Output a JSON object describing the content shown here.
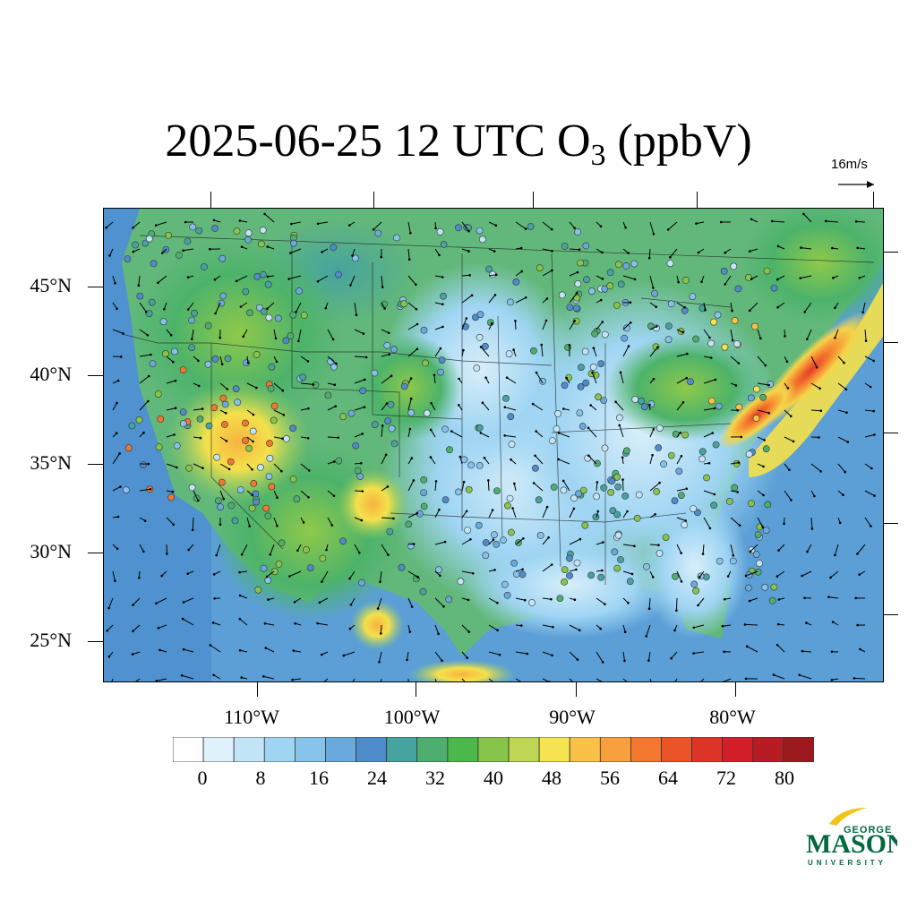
{
  "title": {
    "main": "2025-06-25 12 UTC O",
    "subscript": "3",
    "suffix": " (ppbV)"
  },
  "wind_reference": {
    "label": "16m/s"
  },
  "axes": {
    "lat_labels": [
      "45°N",
      "40°N",
      "35°N",
      "30°N",
      "25°N"
    ],
    "lon_labels": [
      "110°W",
      "100°W",
      "90°W",
      "80°W"
    ]
  },
  "colorbar": {
    "labels": [
      "0",
      "8",
      "16",
      "24",
      "32",
      "40",
      "48",
      "56",
      "64",
      "72",
      "80"
    ],
    "colors": [
      "#ffffff",
      "#dff1fb",
      "#c2e4f7",
      "#9fd5f3",
      "#86c2ea",
      "#69a9dd",
      "#4e8ccb",
      "#47a3a0",
      "#4dae6f",
      "#4cb74a",
      "#86c54a",
      "#bdd654",
      "#f5e44f",
      "#f9c247",
      "#f7a03d",
      "#f3772e",
      "#ea5426",
      "#dd3427",
      "#d21f2a",
      "#b71c23",
      "#9c1a1e"
    ]
  },
  "logo": {
    "line1": "GEORGE",
    "line2": "MASON",
    "line3": "UNIVERSITY",
    "color": "#00693e",
    "accent": "#f2c318"
  },
  "map_colors": {
    "ocean": "#5b9fd6",
    "land_low": "#9cd0ee",
    "land_mid": "#4db36a",
    "high": "#f4e14b",
    "plume": "#ef6a2c"
  }
}
